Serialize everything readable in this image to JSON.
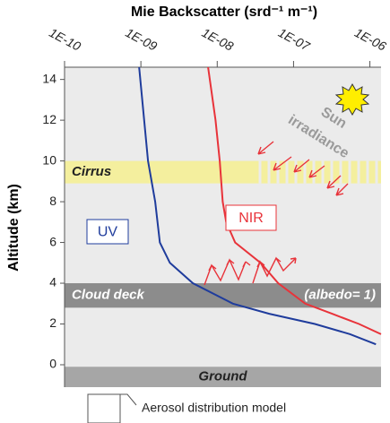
{
  "chart_data": {
    "type": "line",
    "title": "Mie Backscatter (srd⁻¹ m⁻¹)",
    "y_label": "Altitude (km)",
    "log_x": true,
    "xlim": [
      1e-10,
      1.4e-06
    ],
    "xticks": [
      {
        "value": 1e-10,
        "label": "1E-10"
      },
      {
        "value": 1e-09,
        "label": "1E-09"
      },
      {
        "value": 1e-08,
        "label": "1E-08"
      },
      {
        "value": 1e-07,
        "label": "1E-07"
      },
      {
        "value": 1e-06,
        "label": "1E-06"
      }
    ],
    "ylim": [
      -1.1,
      14.6
    ],
    "yticks": [
      0,
      2,
      4,
      6,
      8,
      10,
      12,
      14
    ],
    "series": [
      {
        "name": "UV",
        "color": "#1f3c9c",
        "x": [
          9.5e-10,
          1.24e-09,
          1.54e-09,
          1.77e-09,
          2.4e-09,
          4.8e-09,
          1.6e-08,
          4.8e-08,
          1.9e-07,
          5.5e-07,
          1.2e-06
        ],
        "values": [
          14.6,
          10,
          8,
          6,
          5,
          4,
          3,
          2.5,
          2,
          1.5,
          1
        ]
      },
      {
        "name": "NIR",
        "color": "#e8333a",
        "x": [
          7.6e-09,
          9.5e-09,
          1.08e-08,
          1.18e-08,
          1.31e-08,
          1.72e-08,
          3.7e-08,
          6.3e-08,
          1.42e-07,
          3.2e-07,
          7.2e-07,
          1.4e-06
        ],
        "values": [
          14.6,
          12,
          10,
          8,
          7,
          6,
          5,
          4,
          3,
          2.5,
          2,
          1.5
        ]
      }
    ],
    "bands": [
      {
        "label": "Cirrus",
        "range": [
          8.9,
          10
        ],
        "color": "#f4ef9e"
      },
      {
        "label": "Cloud deck",
        "note": "(albedo= 1)",
        "range": [
          2.8,
          4
        ],
        "color": "#8c8c8c"
      },
      {
        "label": "Ground",
        "range": [
          -1.1,
          -0.1
        ],
        "color": "#a6a6a6"
      }
    ],
    "sun_label": "Sun",
    "irradiance_label": "irradiance",
    "legend_label": "Aerosol distribution model"
  }
}
